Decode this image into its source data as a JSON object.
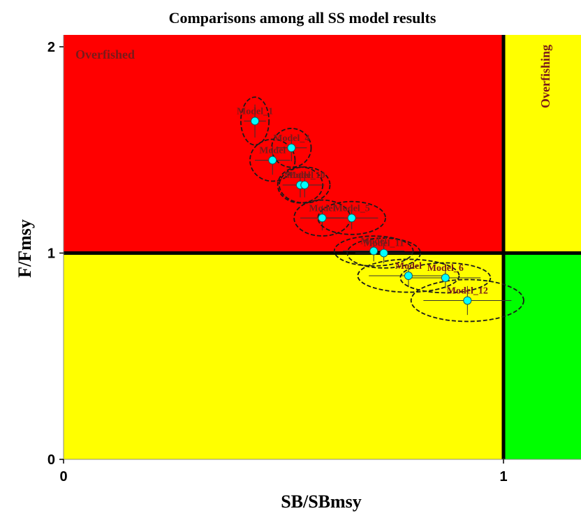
{
  "chart_data": {
    "type": "scatter",
    "title": "Comparisons among all SS model results",
    "xlabel": "SB/SBmsy",
    "ylabel": "F/Fmsy",
    "xlim": [
      0,
      1.18
    ],
    "ylim": [
      0,
      2.05
    ],
    "x_ticks": [
      0,
      1
    ],
    "y_ticks": [
      0,
      1,
      2
    ],
    "reference_lines": {
      "x": 1,
      "y": 1
    },
    "regions": [
      {
        "label": "Overfished",
        "color": "#ff0000"
      },
      {
        "label": "Overfishing",
        "color": "#ffff00"
      },
      {
        "label": "",
        "color": "#ffff00"
      },
      {
        "label": "",
        "color": "#00ff00"
      }
    ],
    "point_color": "#00ffff",
    "points": [
      {
        "label": "Model_1",
        "x": 0.435,
        "y": 1.64,
        "x_err": 0.025,
        "y_err": 0.08
      },
      {
        "label": "Model_4",
        "x": 0.518,
        "y": 1.51,
        "x_err": 0.035,
        "y_err": 0.065
      },
      {
        "label": "Model",
        "x": 0.475,
        "y": 1.45,
        "x_err": 0.04,
        "y_err": 0.07
      },
      {
        "label": "Model",
        "x": 0.538,
        "y": 1.33,
        "x_err": 0.04,
        "y_err": 0.06
      },
      {
        "label": "Model_10",
        "x": 0.548,
        "y": 1.33,
        "x_err": 0.045,
        "y_err": 0.06
      },
      {
        "label": "Model",
        "x": 0.588,
        "y": 1.17,
        "x_err": 0.05,
        "y_err": 0.06
      },
      {
        "label": "Model_5",
        "x": 0.655,
        "y": 1.17,
        "x_err": 0.06,
        "y_err": 0.055
      },
      {
        "label": "Model",
        "x": 0.705,
        "y": 1.01,
        "x_err": 0.07,
        "y_err": 0.05
      },
      {
        "label": "Model_11",
        "x": 0.728,
        "y": 1.0,
        "x_err": 0.065,
        "y_err": 0.05
      },
      {
        "label": "Model",
        "x": 0.784,
        "y": 0.89,
        "x_err": 0.09,
        "y_err": 0.055
      },
      {
        "label": "Model_6",
        "x": 0.868,
        "y": 0.88,
        "x_err": 0.08,
        "y_err": 0.05
      },
      {
        "label": "Model_12",
        "x": 0.918,
        "y": 0.77,
        "x_err": 0.1,
        "y_err": 0.07
      }
    ]
  }
}
